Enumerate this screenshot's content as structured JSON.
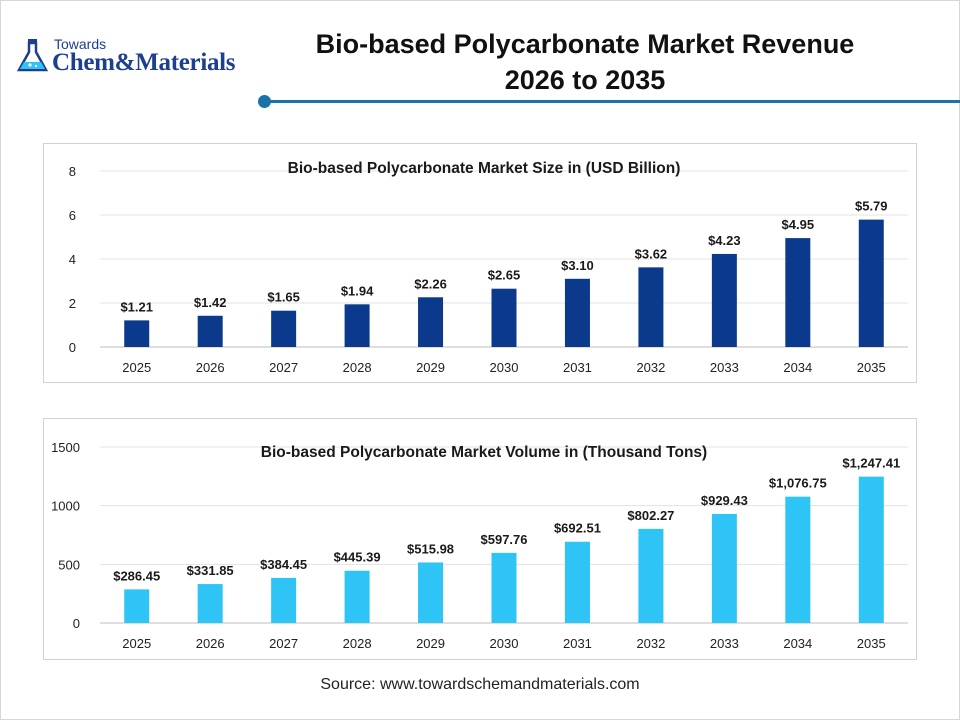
{
  "header": {
    "logo_top": "Towards",
    "logo_brand": "Chem&Materials",
    "title_line1": "Bio-based Polycarbonate Market Revenue",
    "title_line2": "2026 to 2035",
    "accent_color": "#1a73a8"
  },
  "footer": {
    "source": "Source: www.towardschemandmaterials.com"
  },
  "chart_data": [
    {
      "type": "bar",
      "title": "Bio-based Polycarbonate Market Size in (USD Billion)",
      "xlabel": "",
      "ylabel": "",
      "categories": [
        "2025",
        "2026",
        "2027",
        "2028",
        "2029",
        "2030",
        "2031",
        "2032",
        "2033",
        "2034",
        "2035"
      ],
      "values": [
        1.21,
        1.42,
        1.65,
        1.94,
        2.26,
        2.65,
        3.1,
        3.62,
        4.23,
        4.95,
        5.79
      ],
      "data_labels": [
        "$1.21",
        "$1.42",
        "$1.65",
        "$1.94",
        "$2.26",
        "$2.65",
        "$3.10",
        "$3.62",
        "$4.23",
        "$4.95",
        "$5.79"
      ],
      "ylim": [
        0,
        8
      ],
      "yticks": [
        0,
        2,
        4,
        6,
        8
      ],
      "bar_color": "#0b3a8c",
      "grid": true
    },
    {
      "type": "bar",
      "title": "Bio-based Polycarbonate Market Volume in (Thousand Tons)",
      "xlabel": "",
      "ylabel": "",
      "categories": [
        "2025",
        "2026",
        "2027",
        "2028",
        "2029",
        "2030",
        "2031",
        "2032",
        "2033",
        "2034",
        "2035"
      ],
      "values": [
        286.45,
        331.85,
        384.45,
        445.39,
        515.98,
        597.76,
        692.51,
        802.27,
        929.43,
        1076.75,
        1247.41
      ],
      "data_labels": [
        "$286.45",
        "$331.85",
        "$384.45",
        "$445.39",
        "$515.98",
        "$597.76",
        "$692.51",
        "$802.27",
        "$929.43",
        "$1,076.75",
        "$1,247.41"
      ],
      "ylim": [
        0,
        1500
      ],
      "yticks": [
        0,
        500,
        1000,
        1500
      ],
      "bar_color": "#2ec4f5",
      "grid": true
    }
  ]
}
